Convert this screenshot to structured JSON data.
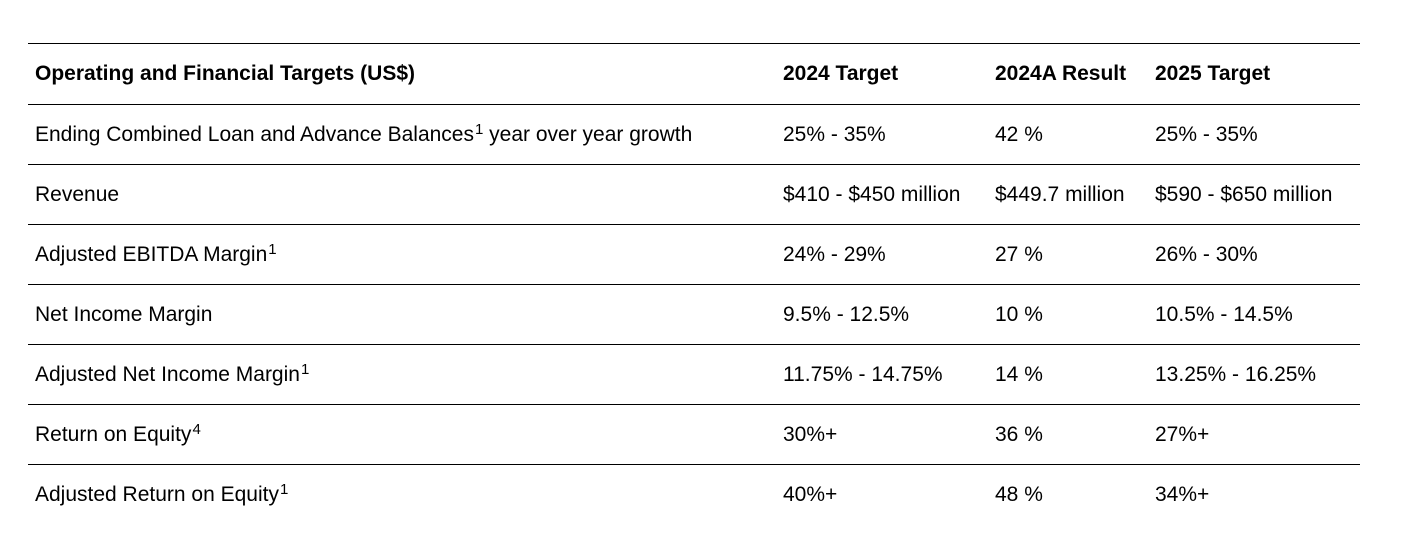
{
  "table": {
    "headers": [
      "Operating and Financial Targets (US$)",
      "2024 Target",
      "2024A Result",
      "2025 Target"
    ],
    "rows": [
      {
        "label": "Ending Combined Loan and Advance Balances",
        "footnote": "1",
        "label_suffix": " year over year growth",
        "target_2024": "25% - 35%",
        "result_2024a": "42 %",
        "target_2025": "25% - 35%"
      },
      {
        "label": "Revenue",
        "footnote": "",
        "label_suffix": "",
        "target_2024": "$410 - $450 million",
        "result_2024a": "$449.7 million",
        "target_2025": "$590 - $650 million"
      },
      {
        "label": "Adjusted EBITDA Margin",
        "footnote": "1",
        "label_suffix": "",
        "target_2024": "24% - 29%",
        "result_2024a": "27 %",
        "target_2025": "26% - 30%"
      },
      {
        "label": "Net Income Margin",
        "footnote": "",
        "label_suffix": "",
        "target_2024": "9.5% - 12.5%",
        "result_2024a": "10 %",
        "target_2025": "10.5% - 14.5%"
      },
      {
        "label": "Adjusted Net Income Margin",
        "footnote": "1",
        "label_suffix": "",
        "target_2024": "11.75% - 14.75%",
        "result_2024a": "14 %",
        "target_2025": "13.25% - 16.25%"
      },
      {
        "label": "Return on Equity",
        "footnote": "4",
        "label_suffix": "",
        "target_2024": "30%+",
        "result_2024a": "36 %",
        "target_2025": "27%+"
      },
      {
        "label": "Adjusted Return on Equity",
        "footnote": "1",
        "label_suffix": "",
        "target_2024": "40%+",
        "result_2024a": "48 %",
        "target_2025": "34%+"
      }
    ]
  }
}
